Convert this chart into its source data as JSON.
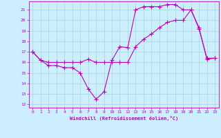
{
  "xlabel": "Windchill (Refroidissement éolien,°C)",
  "bg_color": "#cceeff",
  "grid_color": "#aadddd",
  "line_color": "#bb00bb",
  "xlim": [
    -0.5,
    23.5
  ],
  "ylim": [
    11.7,
    21.8
  ],
  "yticks": [
    12,
    13,
    14,
    15,
    16,
    17,
    18,
    19,
    20,
    21
  ],
  "xticks": [
    0,
    1,
    2,
    3,
    4,
    5,
    6,
    7,
    8,
    9,
    10,
    11,
    12,
    13,
    14,
    15,
    16,
    17,
    18,
    19,
    20,
    21,
    22,
    23
  ],
  "line1_x": [
    0,
    1,
    2,
    3,
    4,
    5,
    6,
    7,
    8,
    9,
    10,
    11,
    12,
    13,
    14,
    15,
    16,
    17,
    18,
    19,
    20,
    21,
    22,
    23
  ],
  "line1_y": [
    17.0,
    16.2,
    15.7,
    15.7,
    15.5,
    15.5,
    15.0,
    13.5,
    12.5,
    13.2,
    16.2,
    17.5,
    17.4,
    21.0,
    21.3,
    21.3,
    21.3,
    21.5,
    21.5,
    21.0,
    21.0,
    19.3,
    16.3,
    16.4
  ],
  "line2_x": [
    0,
    1,
    2,
    3,
    4,
    5,
    6,
    7,
    8,
    9,
    10,
    11,
    12,
    13,
    14,
    15,
    16,
    17,
    18,
    19,
    20,
    21,
    22,
    23
  ],
  "line2_y": [
    17.0,
    16.2,
    16.0,
    16.0,
    16.0,
    16.0,
    16.0,
    16.3,
    16.0,
    16.0,
    16.0,
    16.0,
    16.0,
    17.5,
    18.2,
    18.7,
    19.3,
    19.8,
    20.0,
    20.0,
    21.0,
    19.2,
    16.4,
    16.4
  ]
}
